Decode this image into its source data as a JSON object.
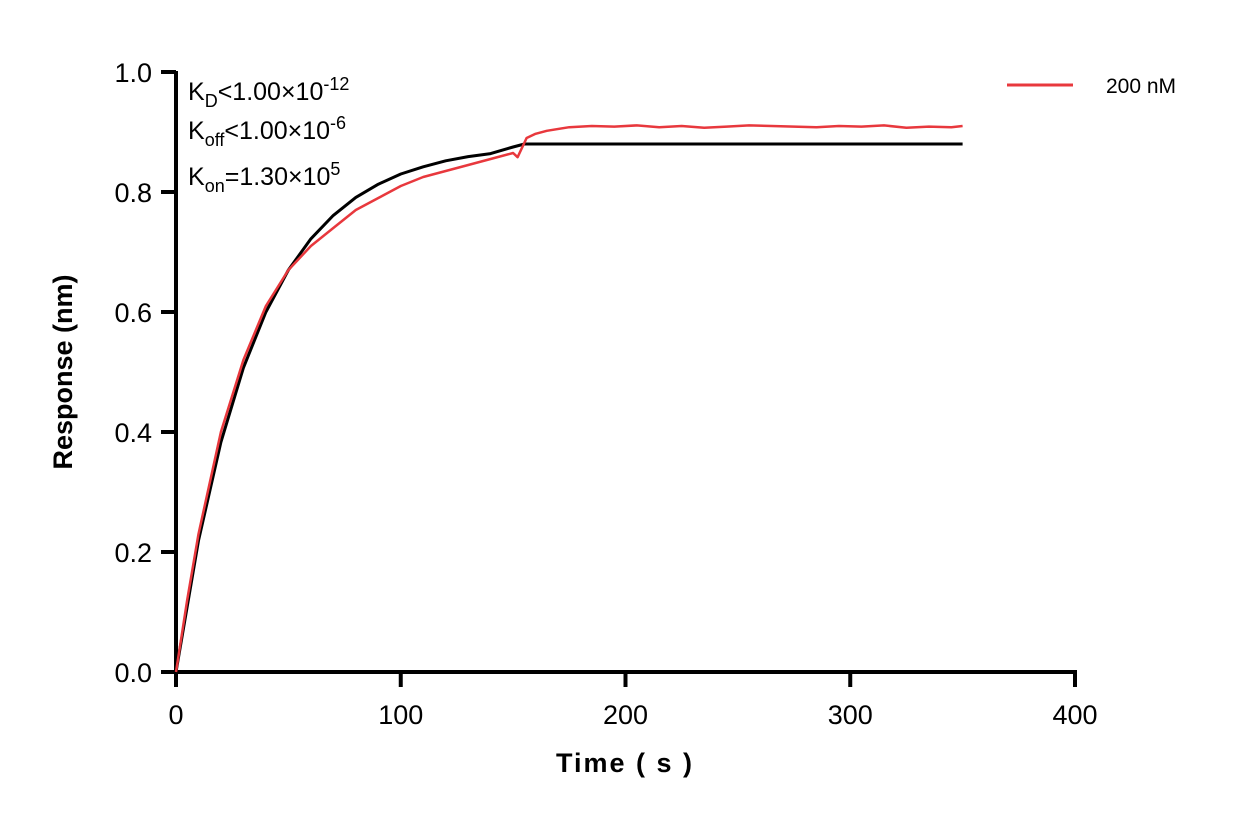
{
  "chart_data": {
    "type": "line",
    "xlabel": "Time ( s )",
    "ylabel": "Response (nm)",
    "xlim": [
      0,
      400
    ],
    "ylim": [
      0,
      1.0
    ],
    "xticks": [
      "0",
      "100",
      "200",
      "300",
      "400"
    ],
    "yticks": [
      "0.0",
      "0.2",
      "0.4",
      "0.6",
      "0.8",
      "1.0"
    ],
    "grid": false,
    "legend_position": "top-right",
    "annotations": {
      "kd": {
        "label": "K",
        "sub": "D",
        "op": "<1.00×10",
        "exp": "-12"
      },
      "koff": {
        "label": "K",
        "sub": "off",
        "op": "<1.00×10",
        "exp": "-6"
      },
      "kon": {
        "label": "K",
        "sub": "on",
        "op": "=1.30×10",
        "exp": "5"
      }
    },
    "series": [
      {
        "name": "200 nM",
        "color": "#e8383d",
        "x": [
          0,
          5,
          10,
          20,
          30,
          40,
          50,
          60,
          70,
          80,
          90,
          100,
          110,
          120,
          130,
          140,
          150,
          152,
          156,
          160,
          165,
          175,
          185,
          195,
          205,
          215,
          225,
          235,
          245,
          255,
          265,
          275,
          285,
          295,
          305,
          315,
          325,
          335,
          345,
          350
        ],
        "y": [
          0,
          0.12,
          0.23,
          0.4,
          0.52,
          0.61,
          0.67,
          0.71,
          0.74,
          0.77,
          0.79,
          0.81,
          0.825,
          0.835,
          0.845,
          0.855,
          0.865,
          0.858,
          0.89,
          0.897,
          0.902,
          0.908,
          0.91,
          0.909,
          0.911,
          0.908,
          0.91,
          0.907,
          0.909,
          0.911,
          0.91,
          0.909,
          0.908,
          0.91,
          0.909,
          0.911,
          0.907,
          0.909,
          0.908,
          0.91
        ]
      },
      {
        "color": "#000000",
        "x": [
          0,
          10,
          20,
          30,
          40,
          50,
          60,
          70,
          80,
          90,
          100,
          110,
          120,
          130,
          140,
          150,
          155,
          350
        ],
        "y": [
          0,
          0.219,
          0.383,
          0.507,
          0.6,
          0.67,
          0.722,
          0.761,
          0.791,
          0.813,
          0.83,
          0.842,
          0.852,
          0.859,
          0.864,
          0.875,
          0.88,
          0.88
        ]
      }
    ]
  }
}
